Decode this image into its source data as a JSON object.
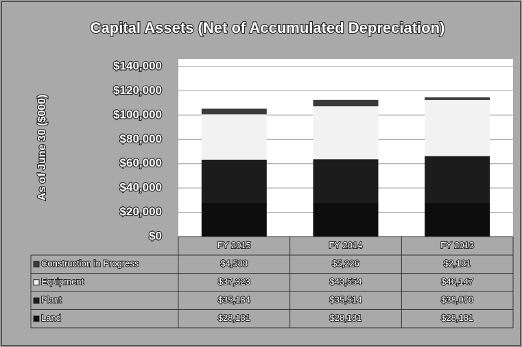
{
  "chart_data": {
    "type": "bar",
    "stacked": true,
    "title": "Capital Assets (Net of Accumulated Depreciation)",
    "ylabel": "As of June 30 ($000)",
    "categories": [
      "FY 2015",
      "FY 2014",
      "FY 2013"
    ],
    "series": [
      {
        "name": "Construction in Progress",
        "color": "#3a3a3a",
        "values": [
          4588,
          5226,
          2181
        ],
        "value_labels": [
          "$4,588",
          "$5,226",
          "$2,181"
        ]
      },
      {
        "name": "Equipment",
        "color": "#f2f2f2",
        "values": [
          37323,
          43554,
          46147
        ],
        "value_labels": [
          "$37,323",
          "$43,554",
          "$46,147"
        ]
      },
      {
        "name": "Plant",
        "color": "#1c1c1c",
        "values": [
          35184,
          35514,
          38070
        ],
        "value_labels": [
          "$35,184",
          "$35,514",
          "$38,070"
        ]
      },
      {
        "name": "Land",
        "color": "#0d0d0d",
        "values": [
          28181,
          28181,
          28181
        ],
        "value_labels": [
          "$28,181",
          "$28,181",
          "$28,181"
        ]
      }
    ],
    "ylim": [
      0,
      140000
    ],
    "yticks": [
      {
        "value": 0,
        "label": "$0"
      },
      {
        "value": 20000,
        "label": "$20,000"
      },
      {
        "value": 40000,
        "label": "$40,000"
      },
      {
        "value": 60000,
        "label": "$60,000"
      },
      {
        "value": 80000,
        "label": "$80,000"
      },
      {
        "value": 100000,
        "label": "$100,000"
      },
      {
        "value": 120000,
        "label": "$120,000"
      },
      {
        "value": 140000,
        "label": "$140,000"
      }
    ],
    "grid": true
  }
}
